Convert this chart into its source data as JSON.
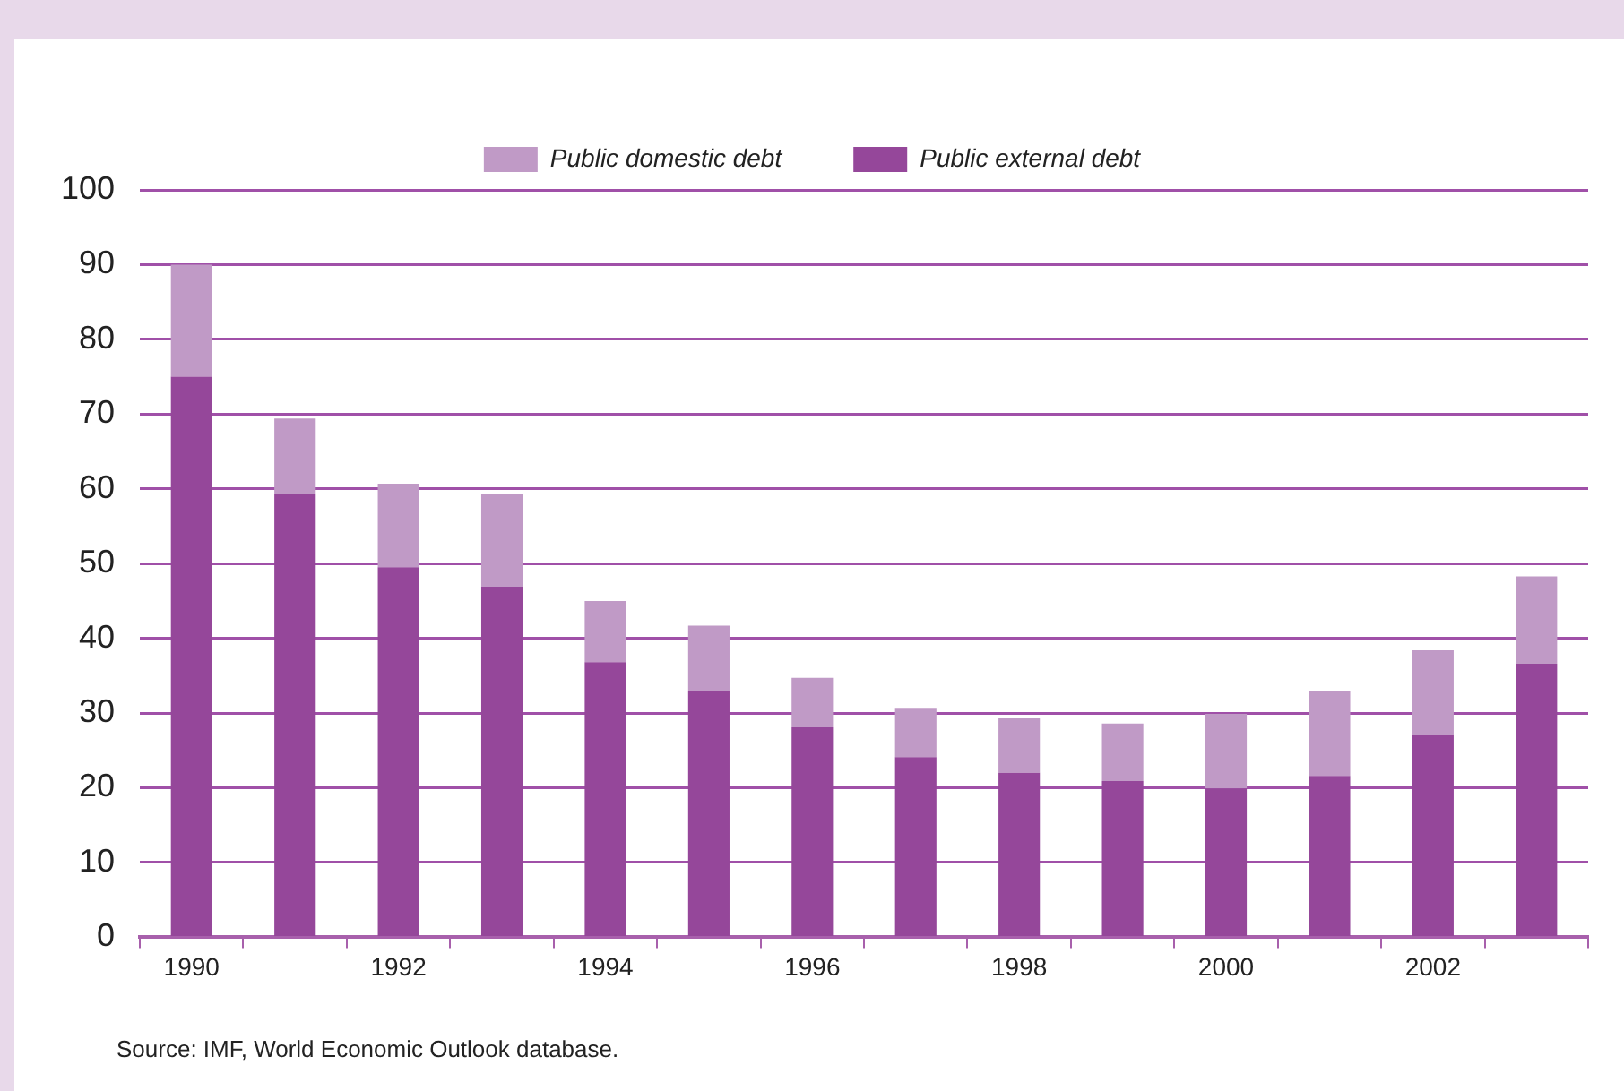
{
  "chart_data": {
    "type": "bar",
    "stacked": true,
    "categories": [
      "1990",
      null,
      "1992",
      null,
      "1994",
      null,
      "1996",
      null,
      "1998",
      null,
      "2000",
      null,
      "2002",
      null
    ],
    "series": [
      {
        "name": "Public external debt",
        "color": "#95479a",
        "values": [
          75,
          59.3,
          49.5,
          46.9,
          36.8,
          33,
          28.1,
          24.1,
          22,
          20.9,
          19.9,
          21.6,
          27,
          36.6
        ]
      },
      {
        "name": "Public domestic debt",
        "color": "#c09ac6",
        "values": [
          15,
          10.1,
          11.2,
          12.4,
          8.2,
          8.7,
          6.6,
          6.6,
          7.3,
          7.7,
          10,
          11.4,
          11.4,
          11.7
        ]
      }
    ],
    "ylim": [
      0,
      100
    ],
    "yticks": [
      0,
      10,
      20,
      30,
      40,
      50,
      60,
      70,
      80,
      90,
      100
    ],
    "grid": "y",
    "legend": "top",
    "annotations": [
      "Source: IMF, World Economic Outlook database."
    ]
  }
}
